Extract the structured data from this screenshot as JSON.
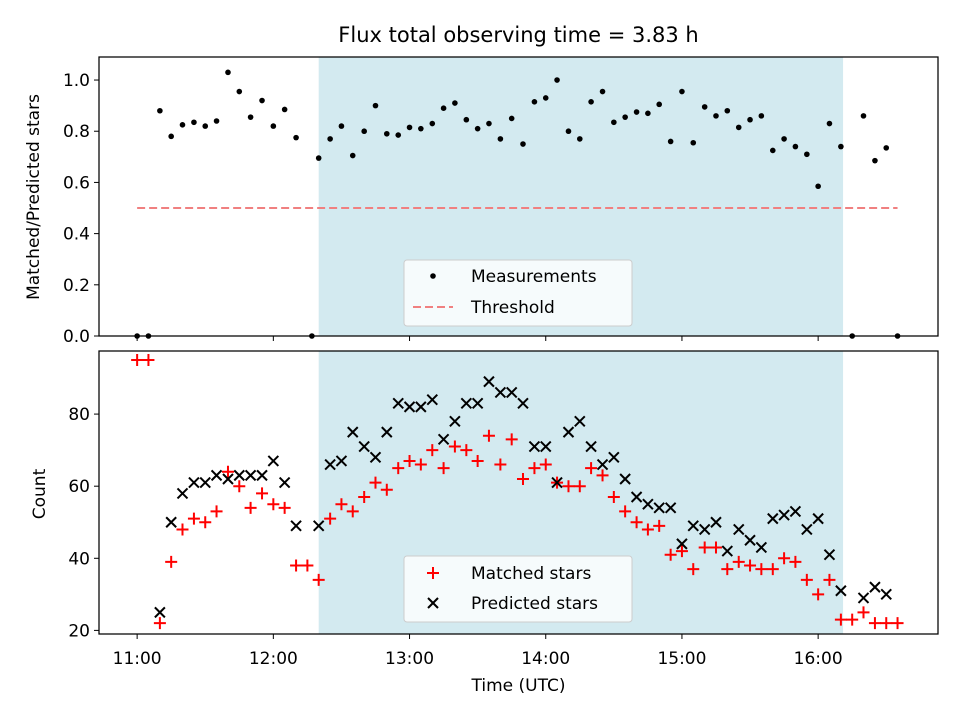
{
  "chart_data": [
    {
      "type": "scatter",
      "title": "Flux total observing time = 3.83 h",
      "xlabel": "",
      "ylabel": "Matched/Predicted stars",
      "xlim": [
        10.72,
        16.88
      ],
      "ylim": [
        0.0,
        1.09
      ],
      "yticks": [
        "0.0",
        "0.2",
        "0.4",
        "0.6",
        "0.8",
        "1.0"
      ],
      "shaded_range": [
        12.333,
        16.183
      ],
      "legend": {
        "position": "bottom-center",
        "entries": [
          "Measurements",
          "Threshold"
        ]
      },
      "series": [
        {
          "name": "Measurements",
          "marker": "dot",
          "color": "#000000",
          "x": [
            11.0,
            11.083,
            11.167,
            11.25,
            11.333,
            11.417,
            11.5,
            11.583,
            11.667,
            11.75,
            11.833,
            11.917,
            12.0,
            12.083,
            12.167,
            12.283,
            12.333,
            12.417,
            12.5,
            12.583,
            12.667,
            12.75,
            12.833,
            12.917,
            13.0,
            13.083,
            13.167,
            13.25,
            13.333,
            13.417,
            13.5,
            13.583,
            13.667,
            13.75,
            13.833,
            13.917,
            14.0,
            14.083,
            14.167,
            14.25,
            14.333,
            14.417,
            14.5,
            14.583,
            14.667,
            14.75,
            14.833,
            14.917,
            15.0,
            15.083,
            15.167,
            15.25,
            15.333,
            15.417,
            15.5,
            15.583,
            15.667,
            15.75,
            15.833,
            15.917,
            16.0,
            16.083,
            16.167,
            16.25,
            16.333,
            16.417,
            16.5,
            16.583
          ],
          "y": [
            0.0,
            0.0,
            0.88,
            0.78,
            0.825,
            0.835,
            0.82,
            0.84,
            1.03,
            0.955,
            0.855,
            0.92,
            0.82,
            0.885,
            0.775,
            0.0,
            0.695,
            0.77,
            0.82,
            0.705,
            0.8,
            0.9,
            0.79,
            0.785,
            0.815,
            0.81,
            0.83,
            0.89,
            0.91,
            0.845,
            0.81,
            0.83,
            0.77,
            0.85,
            0.75,
            0.915,
            0.93,
            1.0,
            0.8,
            0.77,
            0.915,
            0.955,
            0.835,
            0.855,
            0.875,
            0.87,
            0.905,
            0.76,
            0.955,
            0.755,
            0.895,
            0.86,
            0.88,
            0.815,
            0.845,
            0.86,
            0.725,
            0.77,
            0.74,
            0.71,
            0.585,
            0.83,
            0.74,
            0.0,
            0.86,
            0.685,
            0.735,
            0.0
          ]
        },
        {
          "name": "Threshold",
          "style": "dashed",
          "color": "#f08080",
          "x": [
            11.0,
            16.583
          ],
          "y": [
            0.5,
            0.5
          ]
        }
      ]
    },
    {
      "type": "scatter",
      "title": "",
      "xlabel": "Time (UTC)",
      "ylabel": "Count",
      "xlim": [
        10.72,
        16.88
      ],
      "ylim": [
        19.0,
        97.5
      ],
      "yticks": [
        "20",
        "40",
        "60",
        "80"
      ],
      "xticks": [
        "11:00",
        "12:00",
        "13:00",
        "14:00",
        "15:00",
        "16:00"
      ],
      "shaded_range": [
        12.333,
        16.183
      ],
      "legend": {
        "position": "bottom-center",
        "entries": [
          "Matched stars",
          "Predicted stars"
        ]
      },
      "series": [
        {
          "name": "Matched stars",
          "marker": "plus",
          "color": "#ff0000",
          "x": [
            11.0,
            11.083,
            11.167,
            11.25,
            11.333,
            11.417,
            11.5,
            11.583,
            11.667,
            11.75,
            11.833,
            11.917,
            12.0,
            12.083,
            12.167,
            12.25,
            12.333,
            12.417,
            12.5,
            12.583,
            12.667,
            12.75,
            12.833,
            12.917,
            13.0,
            13.083,
            13.167,
            13.25,
            13.333,
            13.417,
            13.5,
            13.583,
            13.667,
            13.75,
            13.833,
            13.917,
            14.0,
            14.083,
            14.167,
            14.25,
            14.333,
            14.417,
            14.5,
            14.583,
            14.667,
            14.75,
            14.833,
            14.917,
            15.0,
            15.083,
            15.167,
            15.25,
            15.333,
            15.417,
            15.5,
            15.583,
            15.667,
            15.75,
            15.833,
            15.917,
            16.0,
            16.083,
            16.167,
            16.25,
            16.333,
            16.417,
            16.5,
            16.583
          ],
          "y": [
            95,
            95,
            22,
            39,
            48,
            51,
            50,
            53,
            64,
            60,
            54,
            58,
            55,
            54,
            38,
            38,
            34,
            51,
            55,
            53,
            57,
            61,
            59,
            65,
            67,
            66,
            70,
            65,
            71,
            70,
            67,
            74,
            66,
            73,
            62,
            65,
            66,
            61,
            60,
            60,
            65,
            63,
            57,
            53,
            50,
            48,
            49,
            41,
            42,
            37,
            43,
            43,
            37,
            39,
            38,
            37,
            37,
            40,
            39,
            34,
            30,
            34,
            23,
            23,
            25,
            22,
            22,
            22
          ]
        },
        {
          "name": "Predicted stars",
          "marker": "x",
          "color": "#000000",
          "x": [
            11.167,
            11.25,
            11.333,
            11.417,
            11.5,
            11.583,
            11.667,
            11.75,
            11.833,
            11.917,
            12.0,
            12.083,
            12.167,
            12.333,
            12.417,
            12.5,
            12.583,
            12.667,
            12.75,
            12.833,
            12.917,
            13.0,
            13.083,
            13.167,
            13.25,
            13.333,
            13.417,
            13.5,
            13.583,
            13.667,
            13.75,
            13.833,
            13.917,
            14.0,
            14.083,
            14.167,
            14.25,
            14.333,
            14.417,
            14.5,
            14.583,
            14.667,
            14.75,
            14.833,
            14.917,
            15.0,
            15.083,
            15.167,
            15.25,
            15.333,
            15.417,
            15.5,
            15.583,
            15.667,
            15.75,
            15.833,
            15.917,
            16.0,
            16.083,
            16.167,
            16.333,
            16.417,
            16.5
          ],
          "y": [
            25,
            50,
            58,
            61,
            61,
            63,
            62,
            63,
            63,
            63,
            67,
            61,
            49,
            49,
            66,
            67,
            75,
            71,
            68,
            75,
            83,
            82,
            82,
            84,
            73,
            78,
            83,
            83,
            89,
            86,
            86,
            83,
            71,
            71,
            61,
            75,
            78,
            71,
            66,
            68,
            62,
            57,
            55,
            54,
            54,
            44,
            49,
            48,
            50,
            42,
            48,
            45,
            43,
            51,
            52,
            53,
            48,
            51,
            41,
            31,
            29,
            32,
            30
          ]
        }
      ]
    }
  ],
  "colors": {
    "shade": "#d3eaf0",
    "matched": "#ff0000",
    "predicted": "#000000",
    "threshold": "#f08080"
  }
}
